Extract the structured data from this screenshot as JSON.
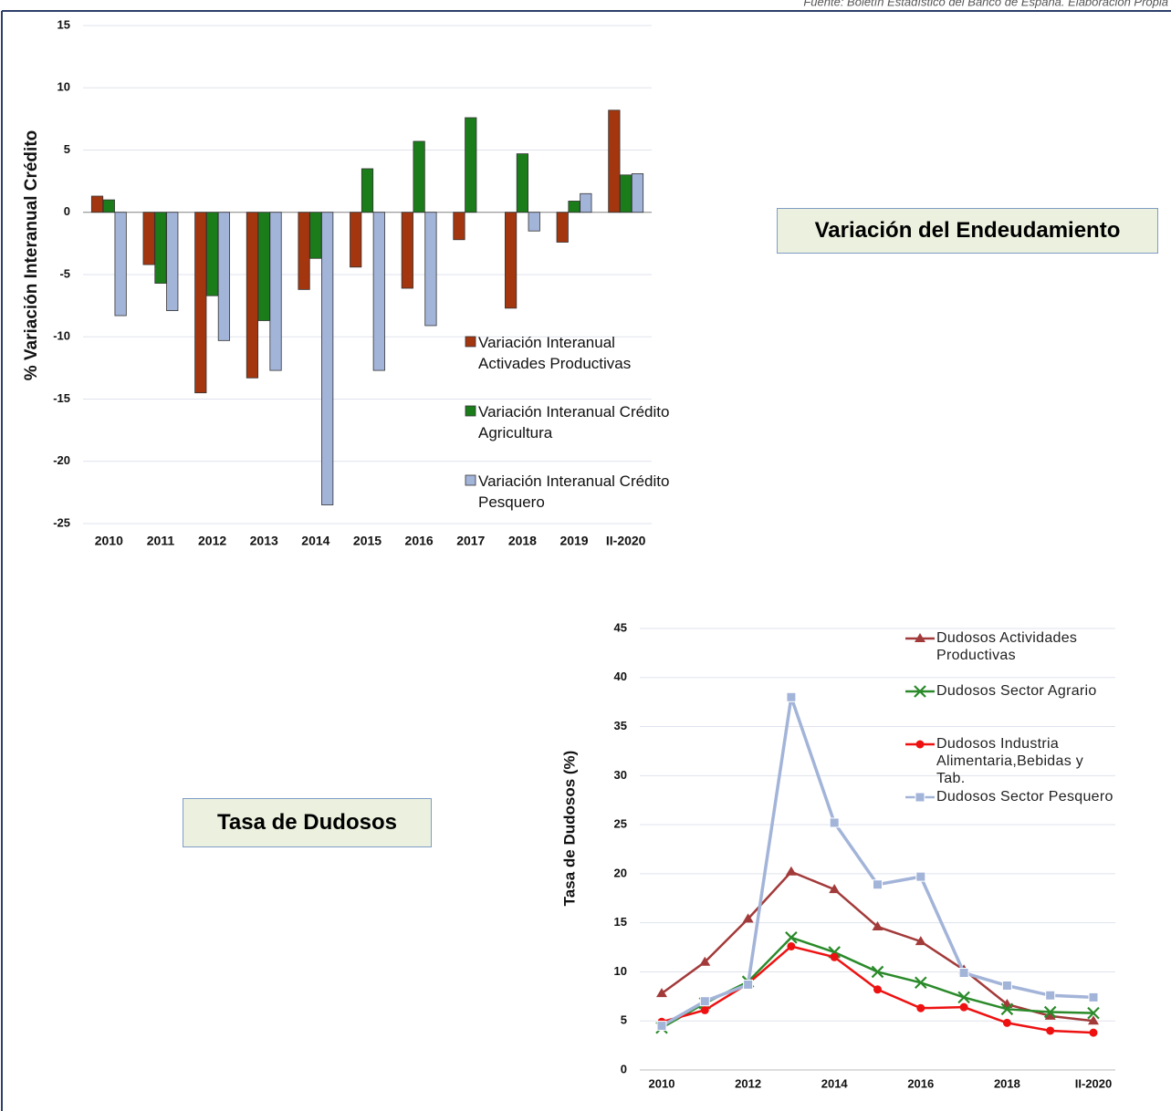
{
  "header": {
    "source": "Fuente: Boletín Estadístico del Banco de España. Elaboración Propia"
  },
  "labels": [
    "Variación del Endeudamiento",
    "Tasa de Dudosos"
  ],
  "chart_data": [
    {
      "type": "bar",
      "y_label": "% Variación Interanual Crédito",
      "categories": [
        "2010",
        "2011",
        "2012",
        "2013",
        "2014",
        "2015",
        "2016",
        "2017",
        "2018",
        "2019",
        "II-2020"
      ],
      "series": [
        {
          "name": "Variación Interanual Activades Productivas",
          "color": "#a3360f",
          "values": [
            1.3,
            -4.2,
            -14.5,
            -13.3,
            -6.2,
            -4.4,
            -6.1,
            -2.2,
            -7.7,
            -2.4,
            8.2
          ]
        },
        {
          "name": "Variación Interanual Crédito Agricultura",
          "color": "#1a7d1a",
          "values": [
            1.0,
            -5.7,
            -6.7,
            -8.7,
            -3.7,
            3.5,
            5.7,
            7.6,
            4.7,
            0.9,
            3.0
          ]
        },
        {
          "name": "Variación Interanual Crédito Pesquero",
          "color": "#a3b4d9",
          "values": [
            -8.3,
            -7.9,
            -10.3,
            -12.7,
            -23.5,
            -12.7,
            -9.1,
            0,
            -1.5,
            1.5,
            3.1
          ]
        }
      ],
      "ylim": [
        -25,
        15
      ],
      "yticks": [
        -25,
        -20,
        -15,
        -10,
        -5,
        0,
        5,
        10,
        15
      ],
      "grid": true
    },
    {
      "type": "line",
      "y_label": "Tasa de Dudosos (%)",
      "categories": [
        "2010",
        null,
        "2012",
        null,
        "2014",
        null,
        "2016",
        null,
        "2018",
        null,
        "II-2020"
      ],
      "series": [
        {
          "name": "Dudosos Actividades Productivas",
          "color": "#a33a3a",
          "marker": "triangle",
          "values": [
            7.8,
            11.0,
            15.4,
            20.2,
            18.4,
            14.6,
            13.1,
            10.2,
            6.7,
            5.5,
            5.0
          ]
        },
        {
          "name": "Dudosos Sector Agrario",
          "color": "#2a8a2a",
          "marker": "x",
          "values": [
            4.3,
            6.8,
            9.0,
            13.5,
            12.0,
            10.0,
            8.9,
            7.4,
            6.2,
            5.9,
            5.8
          ]
        },
        {
          "name": "Dudosos Industria Alimentaria,Bebidas y Tab.",
          "color": "#ee1111",
          "marker": "circle",
          "values": [
            4.9,
            6.1,
            8.8,
            12.6,
            11.5,
            8.2,
            6.3,
            6.4,
            4.8,
            4.0,
            3.8
          ]
        },
        {
          "name": "Dudosos Sector Pesquero",
          "color": "#a3b4d9",
          "marker": "square",
          "values": [
            4.5,
            7.0,
            8.7,
            38.0,
            25.2,
            18.9,
            19.7,
            9.9,
            8.6,
            7.6,
            7.4
          ]
        }
      ],
      "ylim": [
        0,
        45
      ],
      "yticks": [
        0,
        5,
        10,
        15,
        20,
        25,
        30,
        35,
        40,
        45
      ],
      "grid": true
    }
  ]
}
